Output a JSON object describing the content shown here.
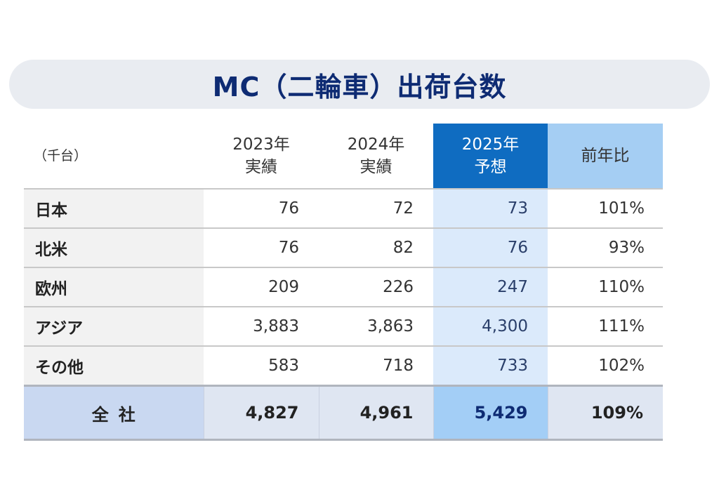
{
  "title": "MC（二輪車）出荷台数",
  "table": {
    "unit": "（千台）",
    "headers": [
      {
        "line1": "2023年",
        "line2": "実績"
      },
      {
        "line1": "2024年",
        "line2": "実績"
      },
      {
        "line1": "2025年",
        "line2": "予想"
      },
      {
        "line1": "前年比",
        "line2": ""
      }
    ],
    "rows": [
      {
        "region": "日本",
        "y2023": "76",
        "y2024": "72",
        "y2025": "73",
        "ratio": "101%"
      },
      {
        "region": "北米",
        "y2023": "76",
        "y2024": "82",
        "y2025": "76",
        "ratio": "93%"
      },
      {
        "region": "欧州",
        "y2023": "209",
        "y2024": "226",
        "y2025": "247",
        "ratio": "110%"
      },
      {
        "region": "アジア",
        "y2023": "3,883",
        "y2024": "3,863",
        "y2025": "4,300",
        "ratio": "111%"
      },
      {
        "region": "その他",
        "y2023": "583",
        "y2024": "718",
        "y2025": "733",
        "ratio": "102%"
      }
    ],
    "total": {
      "label": "全社",
      "y2023": "4,827",
      "y2024": "4,961",
      "y2025": "5,429",
      "ratio": "109%"
    }
  },
  "colors": {
    "title_text": "#0e2b73",
    "forecast_header": "#0f6cc1",
    "ratio_header": "#a5cef3",
    "forecast_column": "#dbeafb",
    "total_row": "#dfe6f2"
  }
}
